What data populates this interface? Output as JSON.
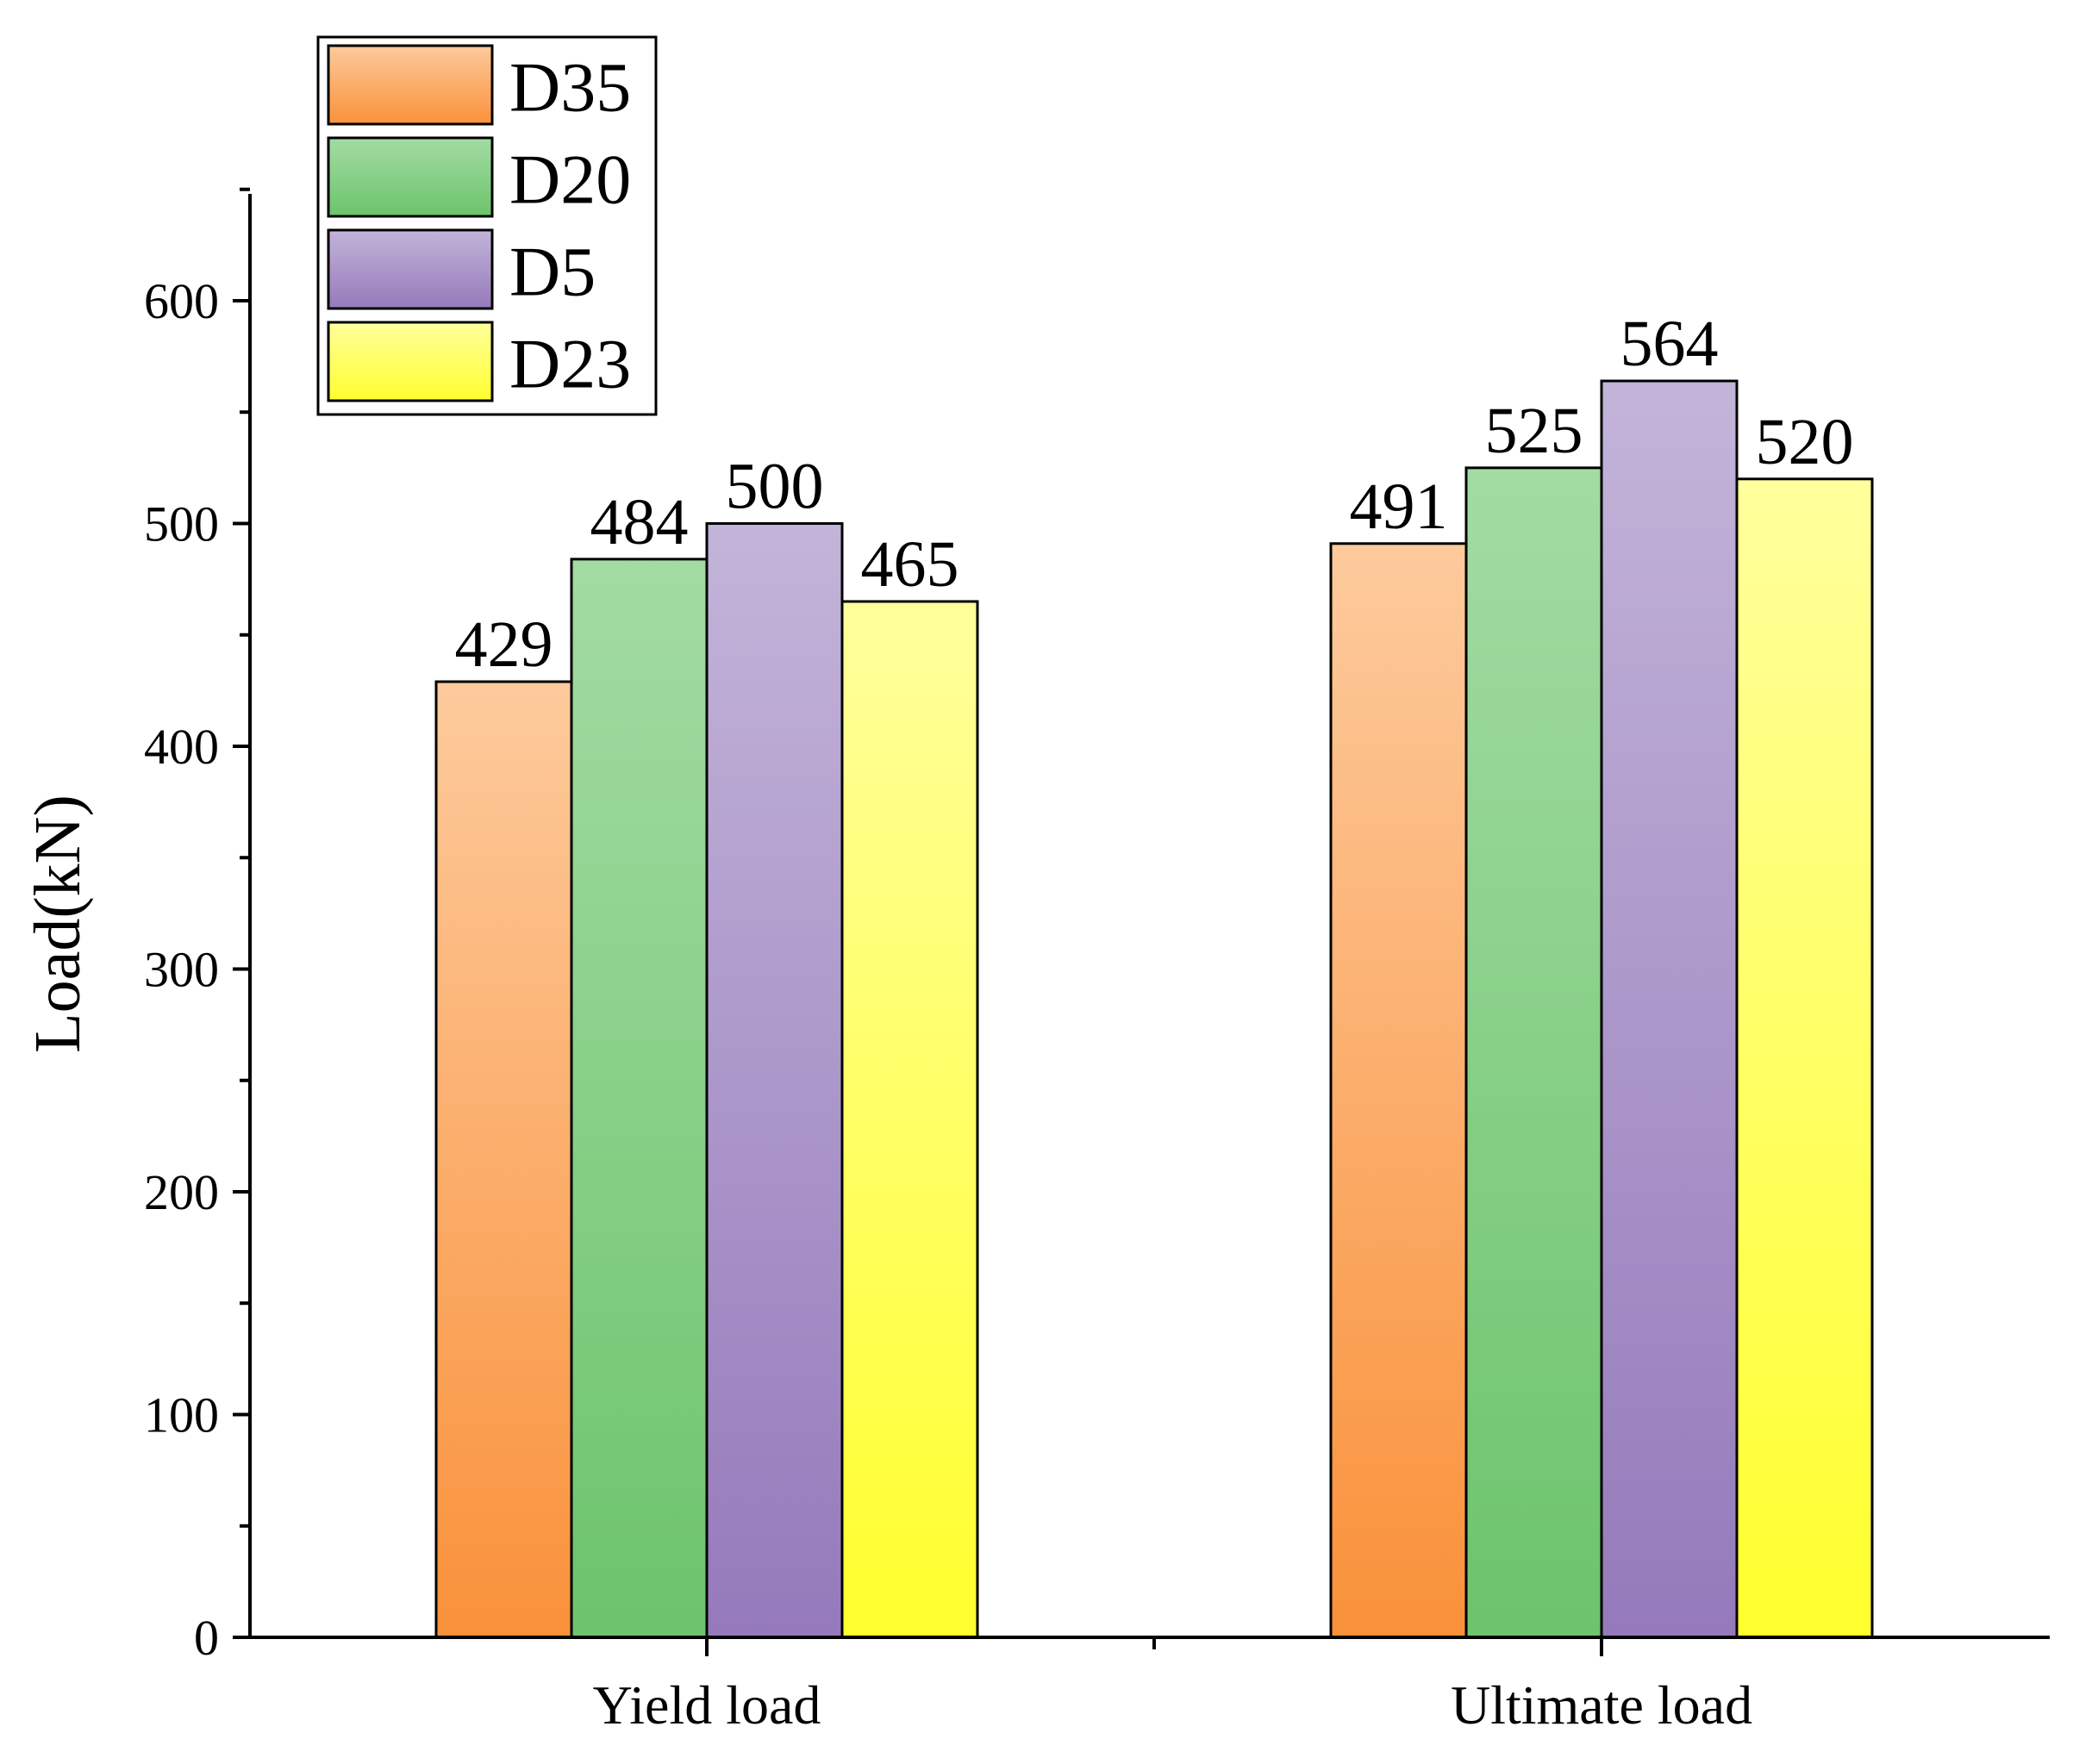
{
  "chart_data": {
    "type": "bar",
    "title": "",
    "xlabel": "",
    "ylabel": "Load(kN)",
    "ylim": [
      0,
      650
    ],
    "yticks": [
      0,
      100,
      200,
      300,
      400,
      500,
      600
    ],
    "grid": false,
    "legend_position": "top-left",
    "categories": [
      "Yield load",
      "Ultimate load"
    ],
    "series": [
      {
        "name": "D35",
        "values": [
          429,
          491
        ],
        "color_top": "#fdca9c",
        "color_bottom": "#f9913a"
      },
      {
        "name": "D20",
        "values": [
          484,
          525
        ],
        "color_top": "#a3dba3",
        "color_bottom": "#6cc46c"
      },
      {
        "name": "D5",
        "values": [
          500,
          564
        ],
        "color_top": "#c3b4d9",
        "color_bottom": "#957abb"
      },
      {
        "name": "D23",
        "values": [
          465,
          520
        ],
        "color_top": "#ffff9c",
        "color_bottom": "#ffff2e"
      }
    ]
  }
}
